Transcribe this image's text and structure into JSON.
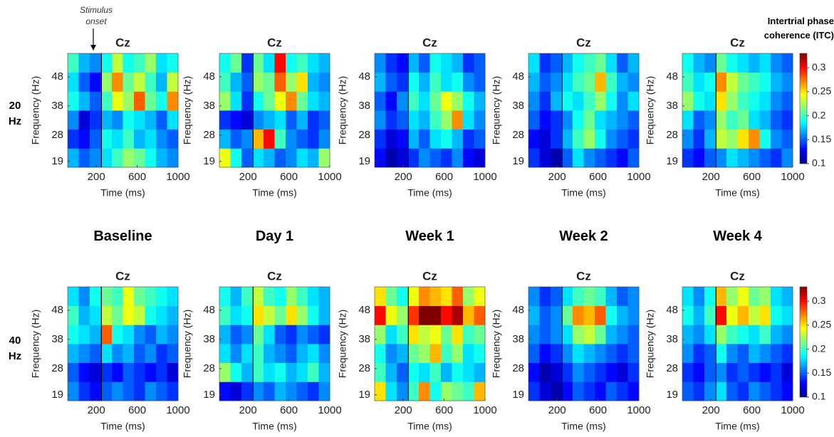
{
  "chart_data": [
    {
      "type": "heatmap",
      "title": "Cz",
      "xlabel": "Time (ms)",
      "ylabel": "Frequency (Hz)",
      "colormap": "jet",
      "onset": 250,
      "xlim": [
        -80,
        1000
      ],
      "xticks": [
        200,
        600,
        1000
      ],
      "ylim": [
        17,
        56
      ],
      "yticks": [
        19,
        28,
        38,
        48
      ],
      "x": [
        -26,
        82,
        190,
        298,
        406,
        514,
        622,
        730,
        838,
        946
      ],
      "y": [
        20.25,
        26.75,
        33.25,
        39.75,
        46.25,
        52.75
      ],
      "z": [
        [
          0.17,
          0.15,
          0.16,
          0.18,
          0.2,
          0.22,
          0.21,
          0.19,
          0.17,
          0.16
        ],
        [
          0.14,
          0.13,
          0.15,
          0.19,
          0.18,
          0.2,
          0.17,
          0.18,
          0.16,
          0.15
        ],
        [
          0.16,
          0.12,
          0.14,
          0.17,
          0.16,
          0.19,
          0.18,
          0.17,
          0.15,
          0.18
        ],
        [
          0.19,
          0.17,
          0.15,
          0.2,
          0.24,
          0.22,
          0.28,
          0.21,
          0.19,
          0.27
        ],
        [
          0.18,
          0.15,
          0.13,
          0.22,
          0.27,
          0.21,
          0.23,
          0.2,
          0.17,
          0.23
        ],
        [
          0.2,
          0.17,
          0.16,
          0.19,
          0.23,
          0.19,
          0.2,
          0.22,
          0.18,
          0.19
        ]
      ]
    },
    {
      "type": "heatmap",
      "title": "Cz",
      "xlabel": "Time (ms)",
      "ylabel": "Frequency (Hz)",
      "colormap": "jet",
      "onset": 250,
      "xlim": [
        -80,
        1000
      ],
      "xticks": [
        200,
        600,
        1000
      ],
      "ylim": [
        17,
        56
      ],
      "yticks": [
        19,
        28,
        38,
        48
      ],
      "x": [
        -26,
        82,
        190,
        298,
        406,
        514,
        622,
        730,
        838,
        946
      ],
      "y": [
        20.25,
        26.75,
        33.25,
        39.75,
        46.25,
        52.75
      ],
      "z": [
        [
          0.24,
          0.19,
          0.15,
          0.18,
          0.17,
          0.15,
          0.16,
          0.18,
          0.17,
          0.22
        ],
        [
          0.17,
          0.15,
          0.16,
          0.26,
          0.3,
          0.2,
          0.16,
          0.15,
          0.14,
          0.16
        ],
        [
          0.14,
          0.13,
          0.12,
          0.16,
          0.17,
          0.18,
          0.15,
          0.17,
          0.14,
          0.15
        ],
        [
          0.22,
          0.18,
          0.14,
          0.19,
          0.21,
          0.24,
          0.27,
          0.21,
          0.18,
          0.17
        ],
        [
          0.2,
          0.17,
          0.15,
          0.22,
          0.21,
          0.28,
          0.22,
          0.25,
          0.17,
          0.16
        ],
        [
          0.19,
          0.21,
          0.14,
          0.21,
          0.18,
          0.3,
          0.19,
          0.2,
          0.18,
          0.17
        ]
      ]
    },
    {
      "type": "heatmap",
      "title": "Cz",
      "xlabel": "Time (ms)",
      "ylabel": "Frequency (Hz)",
      "colormap": "jet",
      "onset": 250,
      "xlim": [
        -80,
        1000
      ],
      "xticks": [
        200,
        600,
        1000
      ],
      "ylim": [
        17,
        56
      ],
      "yticks": [
        19,
        28,
        38,
        48
      ],
      "x": [
        -26,
        82,
        190,
        298,
        406,
        514,
        622,
        730,
        838,
        946
      ],
      "y": [
        20.25,
        26.75,
        33.25,
        39.75,
        46.25,
        52.75
      ],
      "z": [
        [
          0.13,
          0.11,
          0.12,
          0.14,
          0.16,
          0.15,
          0.14,
          0.16,
          0.13,
          0.12
        ],
        [
          0.14,
          0.12,
          0.13,
          0.17,
          0.15,
          0.18,
          0.19,
          0.17,
          0.14,
          0.15
        ],
        [
          0.16,
          0.14,
          0.15,
          0.18,
          0.17,
          0.2,
          0.22,
          0.27,
          0.18,
          0.16
        ],
        [
          0.15,
          0.13,
          0.16,
          0.2,
          0.18,
          0.21,
          0.24,
          0.22,
          0.19,
          0.17
        ],
        [
          0.17,
          0.15,
          0.14,
          0.19,
          0.17,
          0.2,
          0.18,
          0.19,
          0.16,
          0.15
        ],
        [
          0.16,
          0.14,
          0.13,
          0.17,
          0.15,
          0.19,
          0.18,
          0.17,
          0.14,
          0.15
        ]
      ]
    },
    {
      "type": "heatmap",
      "title": "Cz",
      "xlabel": "Time (ms)",
      "ylabel": "Frequency (Hz)",
      "colormap": "jet",
      "onset": 250,
      "xlim": [
        -80,
        1000
      ],
      "xticks": [
        200,
        600,
        1000
      ],
      "ylim": [
        17,
        56
      ],
      "yticks": [
        19,
        28,
        38,
        48
      ],
      "x": [
        -26,
        82,
        190,
        298,
        406,
        514,
        622,
        730,
        838,
        946
      ],
      "y": [
        20.25,
        26.75,
        33.25,
        39.75,
        46.25,
        52.75
      ],
      "z": [
        [
          0.14,
          0.12,
          0.11,
          0.15,
          0.18,
          0.16,
          0.15,
          0.14,
          0.13,
          0.15
        ],
        [
          0.13,
          0.12,
          0.14,
          0.17,
          0.2,
          0.22,
          0.19,
          0.16,
          0.15,
          0.14
        ],
        [
          0.15,
          0.13,
          0.14,
          0.16,
          0.19,
          0.21,
          0.18,
          0.17,
          0.16,
          0.15
        ],
        [
          0.16,
          0.14,
          0.17,
          0.19,
          0.18,
          0.2,
          0.22,
          0.19,
          0.16,
          0.18
        ],
        [
          0.17,
          0.15,
          0.16,
          0.18,
          0.2,
          0.21,
          0.26,
          0.2,
          0.17,
          0.16
        ],
        [
          0.18,
          0.14,
          0.15,
          0.17,
          0.19,
          0.2,
          0.21,
          0.18,
          0.15,
          0.17
        ]
      ]
    },
    {
      "type": "heatmap",
      "title": "Cz",
      "xlabel": "Time (ms)",
      "ylabel": "Frequency (Hz)",
      "colormap": "jet",
      "onset": 250,
      "xlim": [
        -80,
        1000
      ],
      "xticks": [
        200,
        600,
        1000
      ],
      "ylim": [
        17,
        56
      ],
      "yticks": [
        19,
        28,
        38,
        48
      ],
      "x": [
        -26,
        82,
        190,
        298,
        406,
        514,
        622,
        730,
        838,
        946
      ],
      "y": [
        20.25,
        26.75,
        33.25,
        39.75,
        46.25,
        52.75
      ],
      "z": [
        [
          0.14,
          0.13,
          0.15,
          0.16,
          0.18,
          0.17,
          0.16,
          0.15,
          0.14,
          0.16
        ],
        [
          0.16,
          0.14,
          0.17,
          0.23,
          0.22,
          0.25,
          0.27,
          0.19,
          0.16,
          0.15
        ],
        [
          0.18,
          0.15,
          0.16,
          0.22,
          0.2,
          0.21,
          0.18,
          0.17,
          0.15,
          0.14
        ],
        [
          0.22,
          0.19,
          0.18,
          0.25,
          0.22,
          0.2,
          0.19,
          0.18,
          0.16,
          0.15
        ],
        [
          0.2,
          0.18,
          0.19,
          0.27,
          0.23,
          0.21,
          0.2,
          0.19,
          0.17,
          0.16
        ],
        [
          0.19,
          0.17,
          0.16,
          0.21,
          0.19,
          0.18,
          0.17,
          0.18,
          0.16,
          0.15
        ]
      ]
    },
    {
      "type": "heatmap",
      "title": "Cz",
      "xlabel": "Time (ms)",
      "ylabel": "Frequency (Hz)",
      "colormap": "jet",
      "onset": 250,
      "xlim": [
        -80,
        1000
      ],
      "xticks": [
        200,
        600,
        1000
      ],
      "ylim": [
        17,
        56
      ],
      "yticks": [
        19,
        28,
        38,
        48
      ],
      "x": [
        -26,
        82,
        190,
        298,
        406,
        514,
        622,
        730,
        838,
        946
      ],
      "y": [
        20.25,
        26.75,
        33.25,
        39.75,
        46.25,
        52.75
      ],
      "z": [
        [
          0.16,
          0.14,
          0.13,
          0.15,
          0.16,
          0.15,
          0.14,
          0.16,
          0.15,
          0.14
        ],
        [
          0.15,
          0.13,
          0.12,
          0.14,
          0.13,
          0.15,
          0.14,
          0.13,
          0.14,
          0.12
        ],
        [
          0.17,
          0.16,
          0.15,
          0.18,
          0.16,
          0.17,
          0.15,
          0.16,
          0.14,
          0.15
        ],
        [
          0.19,
          0.18,
          0.17,
          0.28,
          0.19,
          0.18,
          0.16,
          0.15,
          0.17,
          0.16
        ],
        [
          0.2,
          0.17,
          0.18,
          0.23,
          0.21,
          0.24,
          0.23,
          0.19,
          0.18,
          0.17
        ],
        [
          0.18,
          0.16,
          0.19,
          0.21,
          0.2,
          0.24,
          0.21,
          0.2,
          0.19,
          0.18
        ]
      ]
    },
    {
      "type": "heatmap",
      "title": "Cz",
      "xlabel": "Time (ms)",
      "ylabel": "Frequency (Hz)",
      "colormap": "jet",
      "onset": 250,
      "xlim": [
        -80,
        1000
      ],
      "xticks": [
        200,
        600,
        1000
      ],
      "ylim": [
        17,
        56
      ],
      "yticks": [
        19,
        28,
        38,
        48
      ],
      "x": [
        -26,
        82,
        190,
        298,
        406,
        514,
        622,
        730,
        838,
        946
      ],
      "y": [
        20.25,
        26.75,
        33.25,
        39.75,
        46.25,
        52.75
      ],
      "z": [
        [
          0.13,
          0.12,
          0.14,
          0.16,
          0.15,
          0.17,
          0.16,
          0.15,
          0.14,
          0.16
        ],
        [
          0.22,
          0.19,
          0.17,
          0.2,
          0.18,
          0.19,
          0.17,
          0.18,
          0.2,
          0.17
        ],
        [
          0.18,
          0.16,
          0.18,
          0.2,
          0.17,
          0.16,
          0.15,
          0.17,
          0.18,
          0.16
        ],
        [
          0.17,
          0.15,
          0.16,
          0.21,
          0.18,
          0.15,
          0.14,
          0.16,
          0.15,
          0.14
        ],
        [
          0.2,
          0.18,
          0.19,
          0.25,
          0.23,
          0.21,
          0.25,
          0.22,
          0.19,
          0.17
        ],
        [
          0.19,
          0.17,
          0.2,
          0.23,
          0.2,
          0.19,
          0.22,
          0.2,
          0.18,
          0.17
        ]
      ]
    },
    {
      "type": "heatmap",
      "title": "Cz",
      "xlabel": "Time (ms)",
      "ylabel": "Frequency (Hz)",
      "colormap": "jet",
      "onset": 250,
      "xlim": [
        -80,
        1000
      ],
      "xticks": [
        200,
        600,
        1000
      ],
      "ylim": [
        17,
        56
      ],
      "yticks": [
        19,
        28,
        38,
        48
      ],
      "x": [
        -26,
        82,
        190,
        298,
        406,
        514,
        622,
        730,
        838,
        946
      ],
      "y": [
        20.25,
        26.75,
        33.25,
        39.75,
        46.25,
        52.75
      ],
      "z": [
        [
          0.25,
          0.18,
          0.16,
          0.2,
          0.27,
          0.19,
          0.22,
          0.21,
          0.2,
          0.26
        ],
        [
          0.2,
          0.17,
          0.15,
          0.19,
          0.18,
          0.2,
          0.17,
          0.19,
          0.18,
          0.17
        ],
        [
          0.19,
          0.16,
          0.17,
          0.21,
          0.22,
          0.26,
          0.2,
          0.22,
          0.18,
          0.19
        ],
        [
          0.22,
          0.18,
          0.2,
          0.25,
          0.23,
          0.24,
          0.21,
          0.25,
          0.2,
          0.21
        ],
        [
          0.3,
          0.24,
          0.22,
          0.29,
          0.33,
          0.33,
          0.3,
          0.32,
          0.26,
          0.28
        ],
        [
          0.25,
          0.21,
          0.19,
          0.24,
          0.27,
          0.26,
          0.25,
          0.28,
          0.22,
          0.24
        ]
      ]
    },
    {
      "type": "heatmap",
      "title": "Cz",
      "xlabel": "Time (ms)",
      "ylabel": "Frequency (Hz)",
      "colormap": "jet",
      "onset": 250,
      "xlim": [
        -80,
        1000
      ],
      "xticks": [
        200,
        600,
        1000
      ],
      "ylim": [
        17,
        56
      ],
      "yticks": [
        19,
        28,
        38,
        48
      ],
      "x": [
        -26,
        82,
        190,
        298,
        406,
        514,
        622,
        730,
        838,
        946
      ],
      "y": [
        20.25,
        26.75,
        33.25,
        39.75,
        46.25,
        52.75
      ],
      "z": [
        [
          0.14,
          0.12,
          0.11,
          0.13,
          0.15,
          0.14,
          0.13,
          0.15,
          0.14,
          0.13
        ],
        [
          0.13,
          0.11,
          0.12,
          0.14,
          0.16,
          0.15,
          0.14,
          0.13,
          0.12,
          0.14
        ],
        [
          0.15,
          0.13,
          0.14,
          0.16,
          0.18,
          0.17,
          0.16,
          0.15,
          0.14,
          0.15
        ],
        [
          0.16,
          0.15,
          0.16,
          0.18,
          0.22,
          0.23,
          0.21,
          0.17,
          0.16,
          0.15
        ],
        [
          0.17,
          0.15,
          0.16,
          0.21,
          0.27,
          0.26,
          0.28,
          0.19,
          0.17,
          0.16
        ],
        [
          0.16,
          0.14,
          0.15,
          0.18,
          0.2,
          0.21,
          0.2,
          0.17,
          0.15,
          0.16
        ]
      ]
    },
    {
      "type": "heatmap",
      "title": "Cz",
      "xlabel": "Time (ms)",
      "ylabel": "Frequency (Hz)",
      "colormap": "jet",
      "onset": 250,
      "xlim": [
        -80,
        1000
      ],
      "xticks": [
        200,
        600,
        1000
      ],
      "ylim": [
        17,
        56
      ],
      "yticks": [
        19,
        28,
        38,
        48
      ],
      "x": [
        -26,
        82,
        190,
        298,
        406,
        514,
        622,
        730,
        838,
        946
      ],
      "y": [
        20.25,
        26.75,
        33.25,
        39.75,
        46.25,
        52.75
      ],
      "z": [
        [
          0.15,
          0.14,
          0.16,
          0.18,
          0.15,
          0.14,
          0.16,
          0.15,
          0.14,
          0.13
        ],
        [
          0.14,
          0.13,
          0.15,
          0.16,
          0.14,
          0.15,
          0.14,
          0.13,
          0.14,
          0.12
        ],
        [
          0.16,
          0.14,
          0.15,
          0.19,
          0.16,
          0.15,
          0.17,
          0.16,
          0.15,
          0.14
        ],
        [
          0.17,
          0.16,
          0.18,
          0.22,
          0.2,
          0.19,
          0.18,
          0.2,
          0.17,
          0.16
        ],
        [
          0.19,
          0.17,
          0.2,
          0.3,
          0.24,
          0.26,
          0.23,
          0.25,
          0.19,
          0.18
        ],
        [
          0.18,
          0.16,
          0.19,
          0.26,
          0.22,
          0.24,
          0.21,
          0.22,
          0.18,
          0.17
        ]
      ]
    }
  ],
  "colorbars": [
    {
      "title": "Intertrial phase coherence (ITC)",
      "clim": [
        0.1,
        0.33
      ],
      "ticks": [
        0.1,
        0.15,
        0.2,
        0.25,
        0.3
      ]
    },
    {
      "clim": [
        0.1,
        0.33
      ],
      "ticks": [
        0.1,
        0.15,
        0.2,
        0.25,
        0.3
      ]
    }
  ],
  "row_labels": [
    "20 Hz",
    "40 Hz"
  ],
  "column_labels": [
    "Baseline",
    "Day 1",
    "Week 1",
    "Week 2",
    "Week 4"
  ],
  "annotation": "Stimulus onset"
}
